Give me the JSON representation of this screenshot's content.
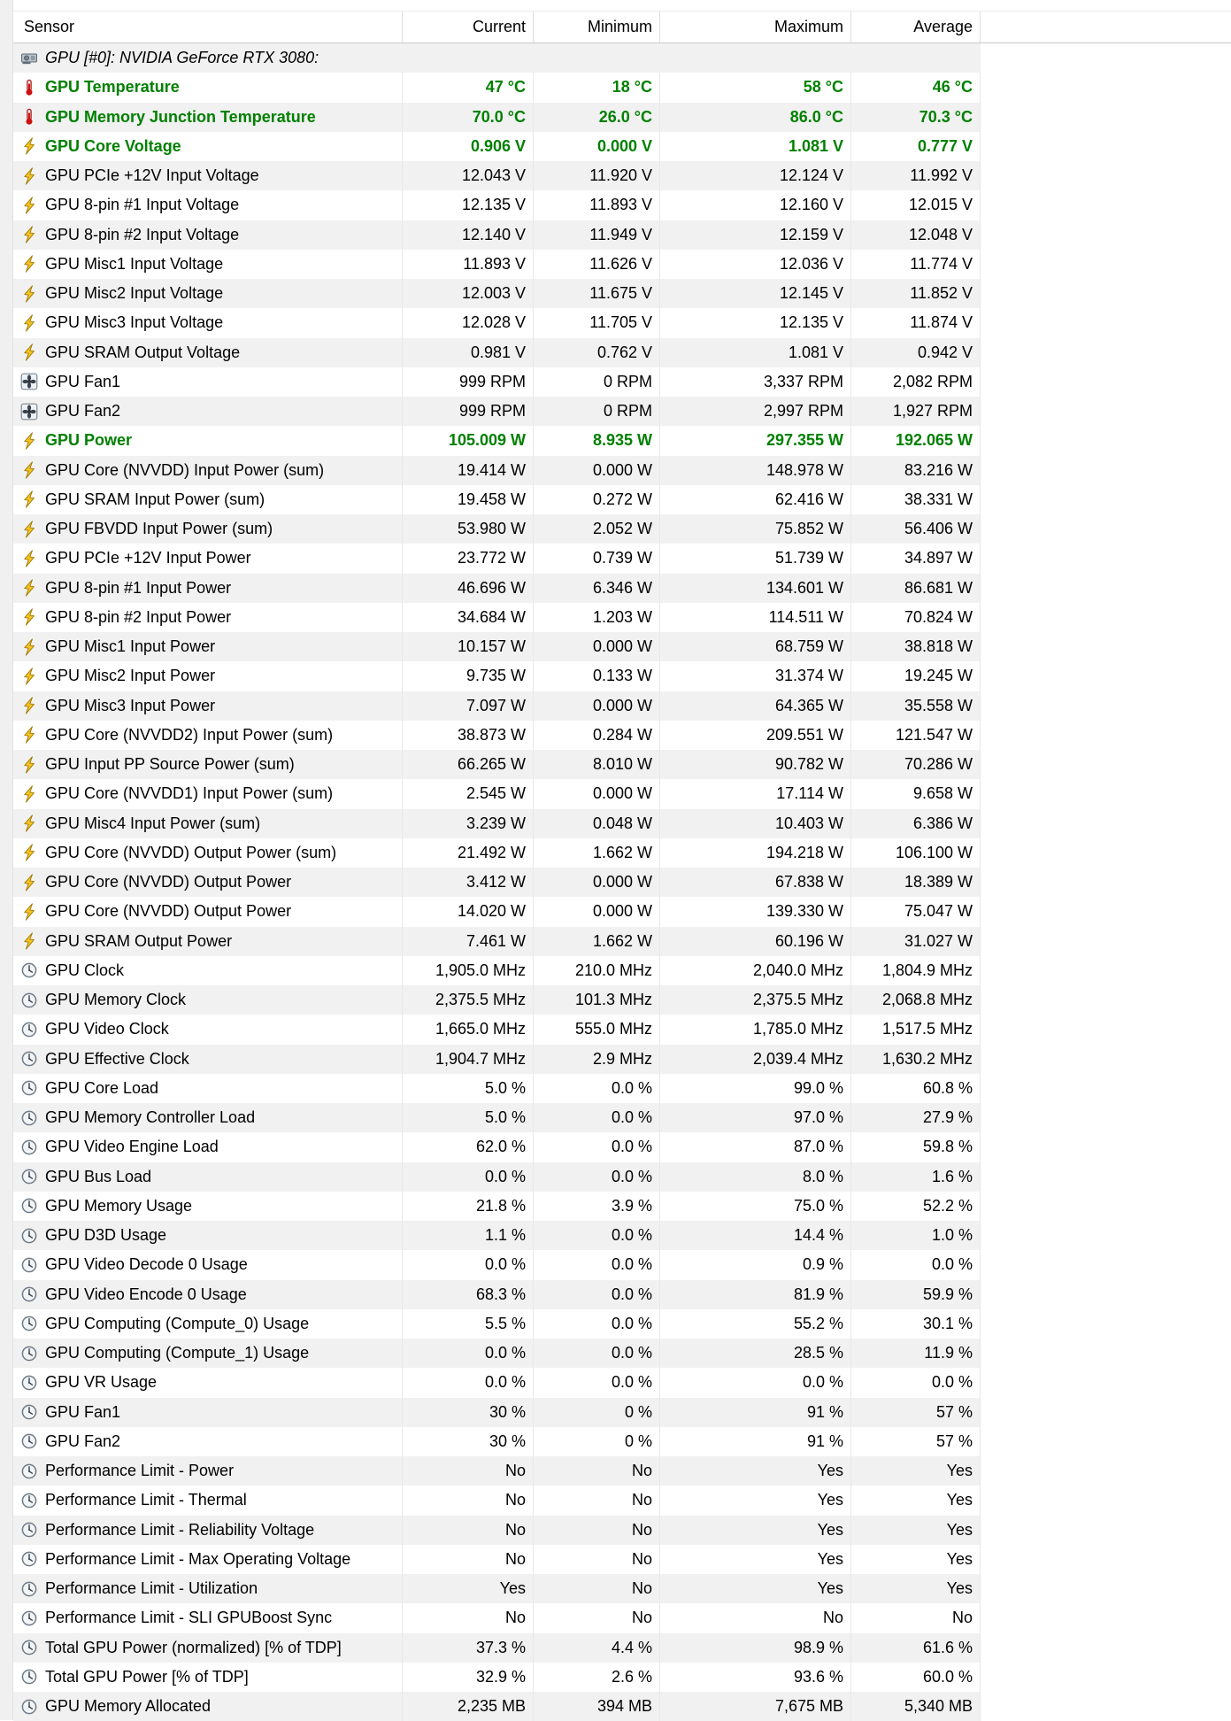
{
  "colors": {
    "highlight_green": "#008000",
    "row_alt": "#f1f1f1",
    "header_border": "#c9c9c9",
    "grid_line": "#e8e8e8",
    "gutter": "#f0f0f0"
  },
  "table": {
    "columns": [
      "Sensor",
      "Current",
      "Minimum",
      "Maximum",
      "Average"
    ]
  },
  "group": {
    "icon": "gpu-card-icon",
    "label": "GPU [#0]: NVIDIA GeForce RTX 3080:"
  },
  "rows": [
    {
      "icon": "thermometer-icon",
      "label": "GPU Temperature",
      "current": "47 °C",
      "min": "18 °C",
      "max": "58 °C",
      "avg": "46 °C",
      "highlight": true
    },
    {
      "icon": "thermometer-icon",
      "label": "GPU Memory Junction Temperature",
      "current": "70.0 °C",
      "min": "26.0 °C",
      "max": "86.0 °C",
      "avg": "70.3 °C",
      "highlight": true
    },
    {
      "icon": "lightning-icon",
      "label": "GPU Core Voltage",
      "current": "0.906 V",
      "min": "0.000 V",
      "max": "1.081 V",
      "avg": "0.777 V",
      "highlight": true
    },
    {
      "icon": "lightning-icon",
      "label": "GPU PCIe +12V Input Voltage",
      "current": "12.043 V",
      "min": "11.920 V",
      "max": "12.124 V",
      "avg": "11.992 V",
      "highlight": false
    },
    {
      "icon": "lightning-icon",
      "label": "GPU 8-pin #1 Input Voltage",
      "current": "12.135 V",
      "min": "11.893 V",
      "max": "12.160 V",
      "avg": "12.015 V",
      "highlight": false
    },
    {
      "icon": "lightning-icon",
      "label": "GPU 8-pin #2 Input Voltage",
      "current": "12.140 V",
      "min": "11.949 V",
      "max": "12.159 V",
      "avg": "12.048 V",
      "highlight": false
    },
    {
      "icon": "lightning-icon",
      "label": "GPU Misc1 Input Voltage",
      "current": "11.893 V",
      "min": "11.626 V",
      "max": "12.036 V",
      "avg": "11.774 V",
      "highlight": false
    },
    {
      "icon": "lightning-icon",
      "label": "GPU Misc2 Input Voltage",
      "current": "12.003 V",
      "min": "11.675 V",
      "max": "12.145 V",
      "avg": "11.852 V",
      "highlight": false
    },
    {
      "icon": "lightning-icon",
      "label": "GPU Misc3 Input Voltage",
      "current": "12.028 V",
      "min": "11.705 V",
      "max": "12.135 V",
      "avg": "11.874 V",
      "highlight": false
    },
    {
      "icon": "lightning-icon",
      "label": "GPU SRAM Output Voltage",
      "current": "0.981 V",
      "min": "0.762 V",
      "max": "1.081 V",
      "avg": "0.942 V",
      "highlight": false
    },
    {
      "icon": "fan-icon",
      "label": "GPU Fan1",
      "current": "999 RPM",
      "min": "0 RPM",
      "max": "3,337 RPM",
      "avg": "2,082 RPM",
      "highlight": false
    },
    {
      "icon": "fan-icon",
      "label": "GPU Fan2",
      "current": "999 RPM",
      "min": "0 RPM",
      "max": "2,997 RPM",
      "avg": "1,927 RPM",
      "highlight": false
    },
    {
      "icon": "lightning-icon",
      "label": "GPU Power",
      "current": "105.009 W",
      "min": "8.935 W",
      "max": "297.355 W",
      "avg": "192.065 W",
      "highlight": true
    },
    {
      "icon": "lightning-icon",
      "label": "GPU Core (NVVDD) Input Power (sum)",
      "current": "19.414 W",
      "min": "0.000 W",
      "max": "148.978 W",
      "avg": "83.216 W",
      "highlight": false
    },
    {
      "icon": "lightning-icon",
      "label": "GPU SRAM Input Power (sum)",
      "current": "19.458 W",
      "min": "0.272 W",
      "max": "62.416 W",
      "avg": "38.331 W",
      "highlight": false
    },
    {
      "icon": "lightning-icon",
      "label": "GPU FBVDD Input Power (sum)",
      "current": "53.980 W",
      "min": "2.052 W",
      "max": "75.852 W",
      "avg": "56.406 W",
      "highlight": false
    },
    {
      "icon": "lightning-icon",
      "label": "GPU PCIe +12V Input Power",
      "current": "23.772 W",
      "min": "0.739 W",
      "max": "51.739 W",
      "avg": "34.897 W",
      "highlight": false
    },
    {
      "icon": "lightning-icon",
      "label": "GPU 8-pin #1 Input Power",
      "current": "46.696 W",
      "min": "6.346 W",
      "max": "134.601 W",
      "avg": "86.681 W",
      "highlight": false
    },
    {
      "icon": "lightning-icon",
      "label": "GPU 8-pin #2 Input Power",
      "current": "34.684 W",
      "min": "1.203 W",
      "max": "114.511 W",
      "avg": "70.824 W",
      "highlight": false
    },
    {
      "icon": "lightning-icon",
      "label": "GPU Misc1 Input Power",
      "current": "10.157 W",
      "min": "0.000 W",
      "max": "68.759 W",
      "avg": "38.818 W",
      "highlight": false
    },
    {
      "icon": "lightning-icon",
      "label": "GPU Misc2 Input Power",
      "current": "9.735 W",
      "min": "0.133 W",
      "max": "31.374 W",
      "avg": "19.245 W",
      "highlight": false
    },
    {
      "icon": "lightning-icon",
      "label": "GPU Misc3 Input Power",
      "current": "7.097 W",
      "min": "0.000 W",
      "max": "64.365 W",
      "avg": "35.558 W",
      "highlight": false
    },
    {
      "icon": "lightning-icon",
      "label": "GPU Core (NVVDD2) Input Power (sum)",
      "current": "38.873 W",
      "min": "0.284 W",
      "max": "209.551 W",
      "avg": "121.547 W",
      "highlight": false
    },
    {
      "icon": "lightning-icon",
      "label": "GPU Input PP Source Power (sum)",
      "current": "66.265 W",
      "min": "8.010 W",
      "max": "90.782 W",
      "avg": "70.286 W",
      "highlight": false
    },
    {
      "icon": "lightning-icon",
      "label": "GPU Core (NVVDD1) Input Power (sum)",
      "current": "2.545 W",
      "min": "0.000 W",
      "max": "17.114 W",
      "avg": "9.658 W",
      "highlight": false
    },
    {
      "icon": "lightning-icon",
      "label": "GPU Misc4 Input Power (sum)",
      "current": "3.239 W",
      "min": "0.048 W",
      "max": "10.403 W",
      "avg": "6.386 W",
      "highlight": false
    },
    {
      "icon": "lightning-icon",
      "label": "GPU Core (NVVDD) Output Power (sum)",
      "current": "21.492 W",
      "min": "1.662 W",
      "max": "194.218 W",
      "avg": "106.100 W",
      "highlight": false
    },
    {
      "icon": "lightning-icon",
      "label": "GPU Core (NVVDD) Output Power",
      "current": "3.412 W",
      "min": "0.000 W",
      "max": "67.838 W",
      "avg": "18.389 W",
      "highlight": false
    },
    {
      "icon": "lightning-icon",
      "label": "GPU Core (NVVDD) Output Power",
      "current": "14.020 W",
      "min": "0.000 W",
      "max": "139.330 W",
      "avg": "75.047 W",
      "highlight": false
    },
    {
      "icon": "lightning-icon",
      "label": "GPU SRAM Output Power",
      "current": "7.461 W",
      "min": "1.662 W",
      "max": "60.196 W",
      "avg": "31.027 W",
      "highlight": false
    },
    {
      "icon": "clock-icon",
      "label": "GPU Clock",
      "current": "1,905.0 MHz",
      "min": "210.0 MHz",
      "max": "2,040.0 MHz",
      "avg": "1,804.9 MHz",
      "highlight": false
    },
    {
      "icon": "clock-icon",
      "label": "GPU Memory Clock",
      "current": "2,375.5 MHz",
      "min": "101.3 MHz",
      "max": "2,375.5 MHz",
      "avg": "2,068.8 MHz",
      "highlight": false
    },
    {
      "icon": "clock-icon",
      "label": "GPU Video Clock",
      "current": "1,665.0 MHz",
      "min": "555.0 MHz",
      "max": "1,785.0 MHz",
      "avg": "1,517.5 MHz",
      "highlight": false
    },
    {
      "icon": "clock-icon",
      "label": "GPU Effective Clock",
      "current": "1,904.7 MHz",
      "min": "2.9 MHz",
      "max": "2,039.4 MHz",
      "avg": "1,630.2 MHz",
      "highlight": false
    },
    {
      "icon": "clock-icon",
      "label": "GPU Core Load",
      "current": "5.0 %",
      "min": "0.0 %",
      "max": "99.0 %",
      "avg": "60.8 %",
      "highlight": false
    },
    {
      "icon": "clock-icon",
      "label": "GPU Memory Controller Load",
      "current": "5.0 %",
      "min": "0.0 %",
      "max": "97.0 %",
      "avg": "27.9 %",
      "highlight": false
    },
    {
      "icon": "clock-icon",
      "label": "GPU Video Engine Load",
      "current": "62.0 %",
      "min": "0.0 %",
      "max": "87.0 %",
      "avg": "59.8 %",
      "highlight": false
    },
    {
      "icon": "clock-icon",
      "label": "GPU Bus Load",
      "current": "0.0 %",
      "min": "0.0 %",
      "max": "8.0 %",
      "avg": "1.6 %",
      "highlight": false
    },
    {
      "icon": "clock-icon",
      "label": "GPU Memory Usage",
      "current": "21.8 %",
      "min": "3.9 %",
      "max": "75.0 %",
      "avg": "52.2 %",
      "highlight": false
    },
    {
      "icon": "clock-icon",
      "label": "GPU D3D Usage",
      "current": "1.1 %",
      "min": "0.0 %",
      "max": "14.4 %",
      "avg": "1.0 %",
      "highlight": false
    },
    {
      "icon": "clock-icon",
      "label": "GPU Video Decode 0 Usage",
      "current": "0.0 %",
      "min": "0.0 %",
      "max": "0.9 %",
      "avg": "0.0 %",
      "highlight": false
    },
    {
      "icon": "clock-icon",
      "label": "GPU Video Encode 0 Usage",
      "current": "68.3 %",
      "min": "0.0 %",
      "max": "81.9 %",
      "avg": "59.9 %",
      "highlight": false
    },
    {
      "icon": "clock-icon",
      "label": "GPU Computing (Compute_0) Usage",
      "current": "5.5 %",
      "min": "0.0 %",
      "max": "55.2 %",
      "avg": "30.1 %",
      "highlight": false
    },
    {
      "icon": "clock-icon",
      "label": "GPU Computing (Compute_1) Usage",
      "current": "0.0 %",
      "min": "0.0 %",
      "max": "28.5 %",
      "avg": "11.9 %",
      "highlight": false
    },
    {
      "icon": "clock-icon",
      "label": "GPU VR Usage",
      "current": "0.0 %",
      "min": "0.0 %",
      "max": "0.0 %",
      "avg": "0.0 %",
      "highlight": false
    },
    {
      "icon": "clock-icon",
      "label": "GPU Fan1",
      "current": "30 %",
      "min": "0 %",
      "max": "91 %",
      "avg": "57 %",
      "highlight": false
    },
    {
      "icon": "clock-icon",
      "label": "GPU Fan2",
      "current": "30 %",
      "min": "0 %",
      "max": "91 %",
      "avg": "57 %",
      "highlight": false
    },
    {
      "icon": "clock-icon",
      "label": "Performance Limit - Power",
      "current": "No",
      "min": "No",
      "max": "Yes",
      "avg": "Yes",
      "highlight": false
    },
    {
      "icon": "clock-icon",
      "label": "Performance Limit - Thermal",
      "current": "No",
      "min": "No",
      "max": "Yes",
      "avg": "Yes",
      "highlight": false
    },
    {
      "icon": "clock-icon",
      "label": "Performance Limit - Reliability Voltage",
      "current": "No",
      "min": "No",
      "max": "Yes",
      "avg": "Yes",
      "highlight": false
    },
    {
      "icon": "clock-icon",
      "label": "Performance Limit - Max Operating Voltage",
      "current": "No",
      "min": "No",
      "max": "Yes",
      "avg": "Yes",
      "highlight": false
    },
    {
      "icon": "clock-icon",
      "label": "Performance Limit - Utilization",
      "current": "Yes",
      "min": "No",
      "max": "Yes",
      "avg": "Yes",
      "highlight": false
    },
    {
      "icon": "clock-icon",
      "label": "Performance Limit - SLI GPUBoost Sync",
      "current": "No",
      "min": "No",
      "max": "No",
      "avg": "No",
      "highlight": false
    },
    {
      "icon": "clock-icon",
      "label": "Total GPU Power (normalized) [% of TDP]",
      "current": "37.3 %",
      "min": "4.4 %",
      "max": "98.9 %",
      "avg": "61.6 %",
      "highlight": false
    },
    {
      "icon": "clock-icon",
      "label": "Total GPU Power [% of TDP]",
      "current": "32.9 %",
      "min": "2.6 %",
      "max": "93.6 %",
      "avg": "60.0 %",
      "highlight": false
    },
    {
      "icon": "clock-icon",
      "label": "GPU Memory Allocated",
      "current": "2,235 MB",
      "min": "394 MB",
      "max": "7,675 MB",
      "avg": "5,340 MB",
      "highlight": false
    }
  ]
}
